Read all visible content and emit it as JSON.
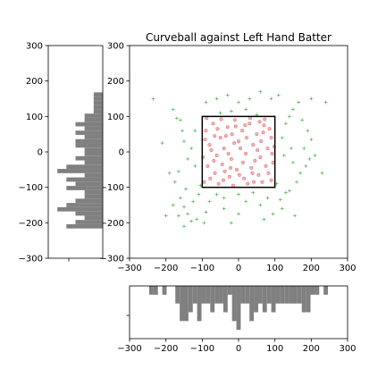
{
  "chart_data": [
    {
      "type": "scatter",
      "title": "Curveball against Left Hand Batter",
      "xlabel": "",
      "ylabel": "",
      "xlim": [
        -300,
        300
      ],
      "ylim": [
        -300,
        300
      ],
      "xticks": [
        -300,
        -200,
        -100,
        0,
        100,
        200,
        300
      ],
      "yticks": [
        -300,
        -200,
        -100,
        0,
        100,
        200,
        300
      ],
      "strike_zone": {
        "x": [
          -100,
          100
        ],
        "y": [
          -100,
          100
        ],
        "color": "#000000"
      },
      "series": [
        {
          "marker": "plus",
          "color": "#2ca02c",
          "points": [
            [
              -235,
              150
            ],
            [
              -210,
              25
            ],
            [
              -170,
              95
            ],
            [
              -160,
              90
            ],
            [
              -155,
              60
            ],
            [
              -150,
              30
            ],
            [
              -165,
              -55
            ],
            [
              -175,
              -85
            ],
            [
              -160,
              -130
            ],
            [
              -150,
              -155
            ],
            [
              -140,
              -175
            ],
            [
              -150,
              -210
            ],
            [
              -165,
              -180
            ],
            [
              -180,
              -150
            ],
            [
              -130,
              -195
            ],
            [
              -125,
              -140
            ],
            [
              -110,
              -120
            ],
            [
              -145,
              -105
            ],
            [
              -120,
              -40
            ],
            [
              -130,
              10
            ],
            [
              -115,
              -190
            ],
            [
              -90,
              -170
            ],
            [
              -80,
              -140
            ],
            [
              -60,
              -120
            ],
            [
              -40,
              -160
            ],
            [
              -20,
              -200
            ],
            [
              0,
              -175
            ],
            [
              20,
              -140
            ],
            [
              40,
              -115
            ],
            [
              60,
              -150
            ],
            [
              80,
              -130
            ],
            [
              95,
              -175
            ],
            [
              120,
              -160
            ],
            [
              130,
              -115
            ],
            [
              115,
              -135
            ],
            [
              140,
              -110
            ],
            [
              160,
              -85
            ],
            [
              170,
              -60
            ],
            [
              185,
              -40
            ],
            [
              195,
              -20
            ],
            [
              180,
              10
            ],
            [
              200,
              35
            ],
            [
              190,
              60
            ],
            [
              175,
              90
            ],
            [
              150,
              120
            ],
            [
              165,
              140
            ],
            [
              140,
              100
            ],
            [
              130,
              80
            ],
            [
              120,
              40
            ],
            [
              125,
              -10
            ],
            [
              150,
              -30
            ],
            [
              145,
              10
            ],
            [
              110,
              160
            ],
            [
              90,
              150
            ],
            [
              60,
              170
            ],
            [
              30,
              150
            ],
            [
              0,
              140
            ],
            [
              -30,
              160
            ],
            [
              -60,
              150
            ],
            [
              -90,
              140
            ],
            [
              -20,
              115
            ],
            [
              20,
              120
            ],
            [
              50,
              105
            ],
            [
              -50,
              110
            ],
            [
              105,
              -90
            ],
            [
              -105,
              -95
            ],
            [
              -120,
              60
            ],
            [
              -140,
              -20
            ],
            [
              200,
              150
            ],
            [
              210,
              -10
            ],
            [
              -40,
              -130
            ],
            [
              0,
              -120
            ],
            [
              -200,
              -180
            ],
            [
              -95,
              -200
            ],
            [
              70,
              -190
            ],
            [
              240,
              140
            ],
            [
              230,
              -60
            ],
            [
              -190,
              -60
            ],
            [
              -180,
              120
            ],
            [
              155,
              -180
            ]
          ]
        },
        {
          "marker": "circle",
          "color": "#d62728",
          "points": [
            [
              -90,
              60
            ],
            [
              -70,
              80
            ],
            [
              -50,
              40
            ],
            [
              -30,
              70
            ],
            [
              -10,
              90
            ],
            [
              10,
              60
            ],
            [
              30,
              80
            ],
            [
              50,
              50
            ],
            [
              70,
              75
            ],
            [
              90,
              40
            ],
            [
              -80,
              20
            ],
            [
              -60,
              -10
            ],
            [
              -40,
              10
            ],
            [
              -20,
              -20
            ],
            [
              0,
              30
            ],
            [
              20,
              -5
            ],
            [
              40,
              20
            ],
            [
              60,
              -15
            ],
            [
              80,
              10
            ],
            [
              95,
              -30
            ],
            [
              -85,
              -40
            ],
            [
              -65,
              -60
            ],
            [
              -45,
              -35
            ],
            [
              -25,
              -70
            ],
            [
              -5,
              -50
            ],
            [
              15,
              -75
            ],
            [
              35,
              -45
            ],
            [
              55,
              -65
            ],
            [
              75,
              -40
            ],
            [
              90,
              -80
            ],
            [
              -95,
              -85
            ],
            [
              -55,
              -90
            ],
            [
              -15,
              -95
            ],
            [
              25,
              -90
            ],
            [
              65,
              -85
            ],
            [
              -75,
              5
            ],
            [
              -35,
              45
            ],
            [
              5,
              10
            ],
            [
              45,
              -25
            ],
            [
              85,
              65
            ],
            [
              -88,
              95
            ],
            [
              -48,
              92
            ],
            [
              -8,
              72
            ],
            [
              32,
              95
            ],
            [
              72,
              92
            ],
            [
              -68,
              -25
            ],
            [
              -28,
              -5
            ],
            [
              12,
              -30
            ],
            [
              52,
              5
            ],
            [
              92,
              -5
            ],
            [
              -58,
              65
            ],
            [
              -18,
              50
            ],
            [
              22,
              40
            ],
            [
              62,
              30
            ],
            [
              -78,
              -75
            ],
            [
              -38,
              -55
            ],
            [
              2,
              -65
            ],
            [
              42,
              -85
            ],
            [
              82,
              -60
            ],
            [
              -92,
              35
            ],
            [
              -42,
              -80
            ],
            [
              38,
              -60
            ],
            [
              -12,
              25
            ],
            [
              68,
              55
            ],
            [
              -66,
              45
            ],
            [
              -22,
              -45
            ],
            [
              18,
              75
            ],
            [
              58,
              85
            ],
            [
              -98,
              -15
            ],
            [
              98,
              15
            ]
          ]
        }
      ]
    },
    {
      "type": "bar",
      "orientation": "horizontal",
      "ylim": [
        -300,
        300
      ],
      "yticks": [
        -300,
        -200,
        -100,
        0,
        100,
        200,
        300
      ],
      "bin_width": 12,
      "color": "#808080",
      "bins": [
        [
          -216,
          4
        ],
        [
          -204,
          3
        ],
        [
          -192,
          2
        ],
        [
          -180,
          3
        ],
        [
          -168,
          5
        ],
        [
          -156,
          4
        ],
        [
          -144,
          3
        ],
        [
          -132,
          2
        ],
        [
          -120,
          2
        ],
        [
          -108,
          4
        ],
        [
          -96,
          3
        ],
        [
          -84,
          4
        ],
        [
          -72,
          2
        ],
        [
          -60,
          5
        ],
        [
          -48,
          4
        ],
        [
          -36,
          2
        ],
        [
          -24,
          3
        ],
        [
          -12,
          2
        ],
        [
          0,
          2
        ],
        [
          12,
          3
        ],
        [
          24,
          3
        ],
        [
          36,
          2
        ],
        [
          48,
          3
        ],
        [
          60,
          2
        ],
        [
          72,
          3
        ],
        [
          84,
          2
        ],
        [
          96,
          2
        ],
        [
          108,
          1
        ],
        [
          120,
          1
        ],
        [
          132,
          1
        ],
        [
          144,
          1
        ],
        [
          156,
          1
        ],
        [
          168,
          0
        ],
        [
          180,
          0
        ],
        [
          192,
          0
        ],
        [
          204,
          0
        ],
        [
          216,
          0
        ]
      ],
      "xmax": 6
    },
    {
      "type": "bar",
      "xlim": [
        -300,
        300
      ],
      "xticks": [
        -300,
        -200,
        -100,
        0,
        100,
        200,
        300
      ],
      "bin_width": 12,
      "color": "#808080",
      "bins": [
        [
          -240,
          1
        ],
        [
          -228,
          1
        ],
        [
          -216,
          0
        ],
        [
          -204,
          1
        ],
        [
          -192,
          0
        ],
        [
          -180,
          0
        ],
        [
          -168,
          2
        ],
        [
          -156,
          4
        ],
        [
          -144,
          4
        ],
        [
          -132,
          3
        ],
        [
          -120,
          2
        ],
        [
          -108,
          4
        ],
        [
          -96,
          2
        ],
        [
          -84,
          2
        ],
        [
          -72,
          3
        ],
        [
          -60,
          2
        ],
        [
          -48,
          2
        ],
        [
          -36,
          3
        ],
        [
          -24,
          1
        ],
        [
          -12,
          4
        ],
        [
          0,
          5
        ],
        [
          12,
          2
        ],
        [
          24,
          2
        ],
        [
          36,
          4
        ],
        [
          48,
          3
        ],
        [
          60,
          2
        ],
        [
          72,
          3
        ],
        [
          84,
          2
        ],
        [
          96,
          3
        ],
        [
          108,
          2
        ],
        [
          120,
          2
        ],
        [
          132,
          2
        ],
        [
          144,
          2
        ],
        [
          156,
          2
        ],
        [
          168,
          2
        ],
        [
          180,
          3
        ],
        [
          192,
          3
        ],
        [
          204,
          1
        ],
        [
          216,
          1
        ],
        [
          228,
          0
        ],
        [
          240,
          1
        ]
      ],
      "ymax": 6
    }
  ]
}
